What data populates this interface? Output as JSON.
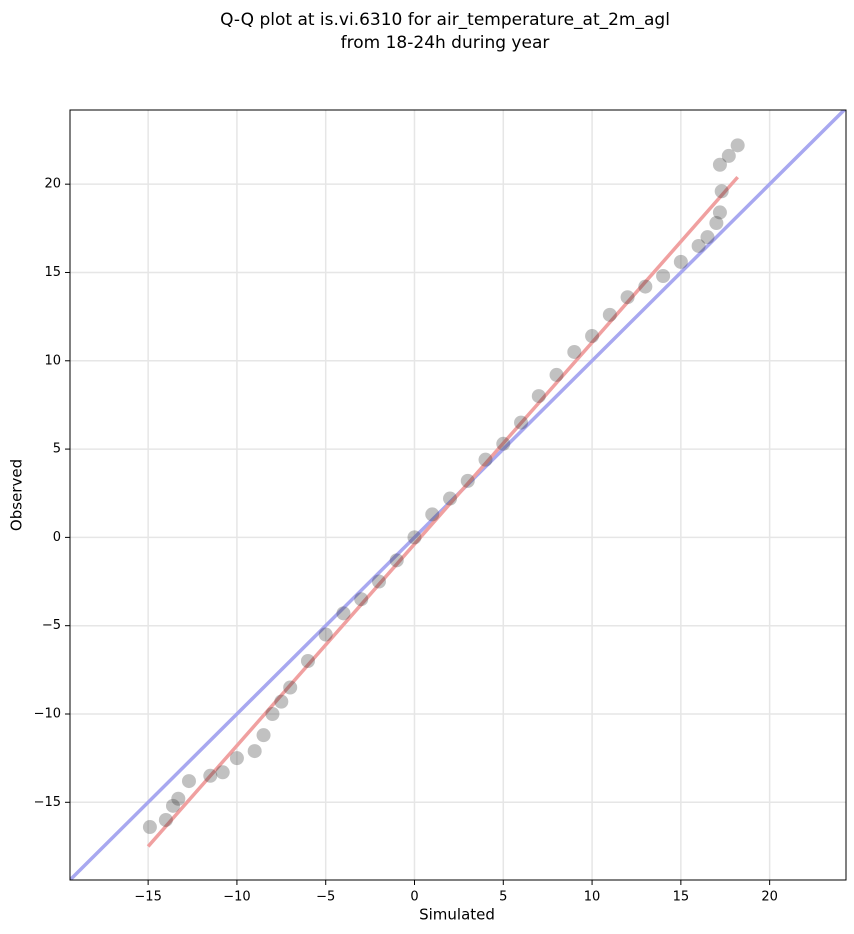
{
  "chart_data": {
    "type": "scatter",
    "title": [
      "Q-Q plot at is.vi.6310 for air_temperature_at_2m_agl",
      "from 18-24h during year"
    ],
    "x_label": "Simulated",
    "y_label": "Observed",
    "xlim": [
      -19.4,
      24.3
    ],
    "ylim": [
      -19.4,
      24.2
    ],
    "xticks": [
      {
        "value": -15,
        "label": "−15"
      },
      {
        "value": -10,
        "label": "−10"
      },
      {
        "value": -5,
        "label": "−5"
      },
      0,
      5,
      10,
      15,
      20
    ],
    "yticks": [
      {
        "value": -15,
        "label": "−15"
      },
      {
        "value": -10,
        "label": "−10"
      },
      {
        "value": -5,
        "label": "−5"
      },
      0,
      5,
      10,
      15,
      20
    ],
    "grid": true,
    "color": "#333333",
    "x": [
      -14.9,
      -14,
      -13.6,
      -13.3,
      -12.7,
      -11.5,
      -10.8,
      -10,
      -9,
      -8.5,
      -8,
      -7.5,
      -7,
      -6,
      -5,
      -4,
      -3,
      -2,
      -1,
      0,
      1,
      2,
      3,
      4,
      5,
      6,
      7,
      8,
      9,
      10,
      11,
      12,
      13,
      14,
      15,
      16,
      16.5,
      17,
      17.2,
      17.3,
      17.2,
      17.7,
      18.2
    ],
    "values": [
      -16.4,
      -16,
      -15.2,
      -14.8,
      -13.8,
      -13.5,
      -13.3,
      -12.5,
      -12.1,
      -11.2,
      -10,
      -9.3,
      -8.5,
      -7,
      -5.5,
      -4.3,
      -3.5,
      -2.5,
      -1.3,
      0,
      1.3,
      2.2,
      3.2,
      4.4,
      5.3,
      6.5,
      8,
      9.2,
      10.5,
      11.4,
      12.6,
      13.6,
      14.2,
      14.8,
      15.6,
      16.5,
      17,
      17.8,
      18.4,
      19.6,
      21.1,
      21.6,
      22.2
    ],
    "lines": [
      {
        "color": "#a8a8f0",
        "x": [
          -19.4,
          24.3
        ],
        "values": [
          -19.4,
          24.3
        ]
      },
      {
        "color": "#f0a0a0",
        "x": [
          -15,
          18.2
        ],
        "values": [
          -17.5,
          20.4
        ]
      }
    ]
  }
}
